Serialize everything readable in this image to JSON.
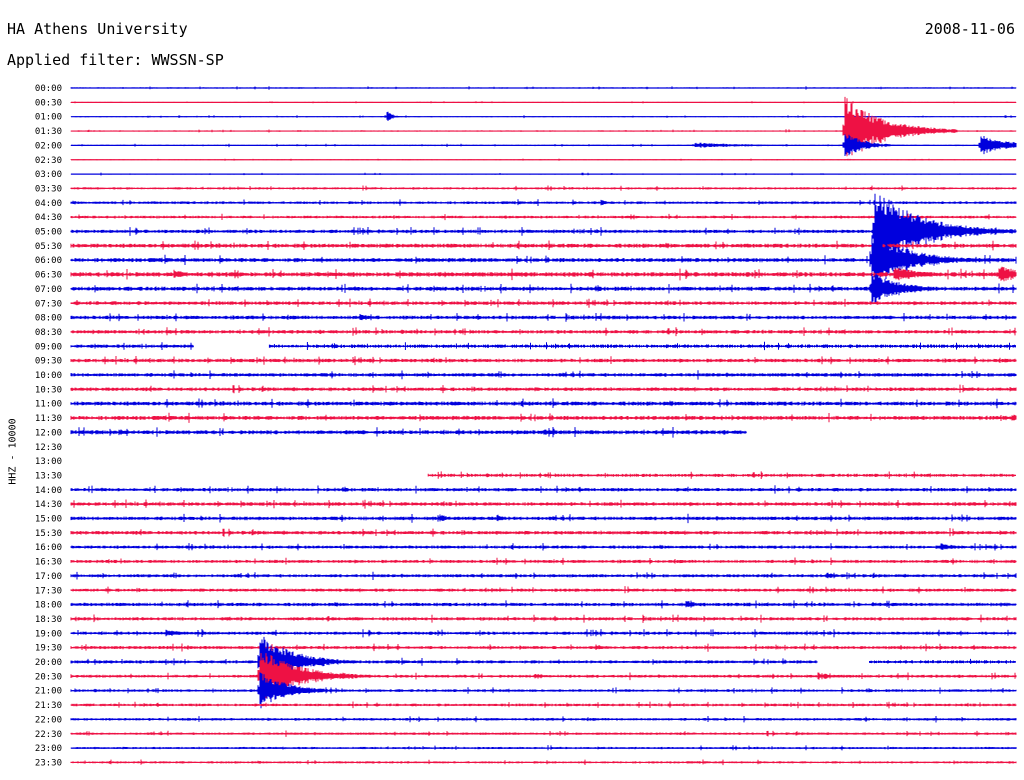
{
  "header": {
    "title": "HA Athens University",
    "date": "2008-11-06",
    "filter_label": "Applied filter:",
    "filter_value": "WWSSN-SP"
  },
  "station": "HHZ - 10000",
  "colors": {
    "odd_rows": "#0000dd",
    "even_rows": "#ee1144"
  },
  "chart_data": {
    "type": "line",
    "title": "HA Athens University",
    "ylabel": "HHZ - 10000",
    "xlabel": "",
    "row_labels": [
      "00:00",
      "00:30",
      "01:00",
      "01:30",
      "02:00",
      "02:30",
      "03:00",
      "03:30",
      "04:00",
      "04:30",
      "05:00",
      "05:30",
      "06:00",
      "06:30",
      "07:00",
      "07:30",
      "08:00",
      "08:30",
      "09:00",
      "09:30",
      "10:00",
      "10:30",
      "11:00",
      "11:30",
      "12:00",
      "12:30",
      "13:00",
      "13:30",
      "14:00",
      "14:30",
      "15:00",
      "15:30",
      "16:00",
      "16:30",
      "17:00",
      "17:30",
      "18:00",
      "18:30",
      "19:00",
      "19:30",
      "20:00",
      "20:30",
      "21:00",
      "21:30",
      "22:00",
      "22:30",
      "23:00",
      "23:30"
    ],
    "row_span_minutes": 30,
    "traces": [
      {
        "row": "00:00",
        "noise": 0.6,
        "coverage": [
          [
            0,
            1
          ]
        ]
      },
      {
        "row": "00:30",
        "noise": 0.4,
        "coverage": [
          [
            0,
            1
          ]
        ]
      },
      {
        "row": "01:00",
        "noise": 0.5,
        "coverage": [
          [
            0,
            1
          ]
        ],
        "events": [
          {
            "t": 0.334,
            "amp": 7,
            "dur": 0.006
          }
        ]
      },
      {
        "row": "01:30",
        "noise": 0.6,
        "coverage": [
          [
            0,
            1
          ]
        ],
        "events": [
          {
            "t": 0.818,
            "amp": 36,
            "dur": 0.04
          }
        ]
      },
      {
        "row": "02:00",
        "noise": 0.6,
        "coverage": [
          [
            0,
            1
          ]
        ],
        "events": [
          {
            "t": 0.66,
            "amp": 3,
            "dur": 0.06
          },
          {
            "t": 0.962,
            "amp": 11,
            "dur": 0.03
          },
          {
            "t": 0.818,
            "amp": 14,
            "dur": 0.02
          }
        ]
      },
      {
        "row": "02:30",
        "noise": 0.4,
        "coverage": [
          [
            0,
            1
          ]
        ]
      },
      {
        "row": "03:00",
        "noise": 0.5,
        "coverage": [
          [
            0,
            1
          ]
        ]
      },
      {
        "row": "03:30",
        "noise": 1.0,
        "coverage": [
          [
            0,
            1
          ]
        ]
      },
      {
        "row": "04:00",
        "noise": 1.2,
        "coverage": [
          [
            0,
            1
          ]
        ],
        "events": [
          {
            "t": 0.56,
            "amp": 4,
            "dur": 0.01
          }
        ]
      },
      {
        "row": "04:30",
        "noise": 1.2,
        "coverage": [
          [
            0,
            1
          ]
        ]
      },
      {
        "row": "05:00",
        "noise": 1.5,
        "coverage": [
          [
            0,
            1
          ]
        ],
        "events": [
          {
            "t": 0.85,
            "amp": 42,
            "dur": 0.05
          }
        ]
      },
      {
        "row": "05:30",
        "noise": 1.8,
        "coverage": [
          [
            0,
            1
          ]
        ]
      },
      {
        "row": "06:00",
        "noise": 1.8,
        "coverage": [
          [
            0,
            1
          ]
        ],
        "events": [
          {
            "t": 0.847,
            "amp": 30,
            "dur": 0.04
          }
        ]
      },
      {
        "row": "06:30",
        "noise": 2.0,
        "coverage": [
          [
            0,
            1
          ]
        ],
        "events": [
          {
            "t": 0.108,
            "amp": 6,
            "dur": 0.015
          },
          {
            "t": 0.87,
            "amp": 8,
            "dur": 0.03
          },
          {
            "t": 0.982,
            "amp": 11,
            "dur": 0.02
          }
        ]
      },
      {
        "row": "07:00",
        "noise": 1.8,
        "coverage": [
          [
            0,
            1
          ]
        ],
        "events": [
          {
            "t": 0.847,
            "amp": 18,
            "dur": 0.03
          }
        ]
      },
      {
        "row": "07:30",
        "noise": 1.6,
        "coverage": [
          [
            0,
            1
          ]
        ]
      },
      {
        "row": "08:00",
        "noise": 1.6,
        "coverage": [
          [
            0,
            1
          ]
        ],
        "events": [
          {
            "t": 0.305,
            "amp": 4,
            "dur": 0.015
          }
        ]
      },
      {
        "row": "08:30",
        "noise": 1.6,
        "coverage": [
          [
            0,
            1
          ]
        ]
      },
      {
        "row": "09:00",
        "noise": 1.5,
        "coverage": [
          [
            0,
            0.13
          ],
          [
            0.21,
            1
          ]
        ]
      },
      {
        "row": "09:30",
        "noise": 1.6,
        "coverage": [
          [
            0,
            1
          ]
        ]
      },
      {
        "row": "10:00",
        "noise": 1.6,
        "coverage": [
          [
            0,
            1
          ]
        ]
      },
      {
        "row": "10:30",
        "noise": 1.6,
        "coverage": [
          [
            0,
            1
          ]
        ]
      },
      {
        "row": "11:00",
        "noise": 1.8,
        "coverage": [
          [
            0,
            1
          ]
        ]
      },
      {
        "row": "11:30",
        "noise": 1.8,
        "coverage": [
          [
            0,
            1
          ]
        ],
        "events": [
          {
            "t": 0.995,
            "amp": 5,
            "dur": 0.01
          }
        ]
      },
      {
        "row": "12:00",
        "noise": 1.8,
        "coverage": [
          [
            0,
            0.715
          ]
        ],
        "events": [
          {
            "t": 0.05,
            "amp": 4,
            "dur": 0.01
          },
          {
            "t": 0.5,
            "amp": 4,
            "dur": 0.015
          }
        ]
      },
      {
        "row": "12:30",
        "noise": 0,
        "coverage": []
      },
      {
        "row": "13:00",
        "noise": 0,
        "coverage": []
      },
      {
        "row": "13:30",
        "noise": 1.4,
        "coverage": [
          [
            0.378,
            1
          ]
        ]
      },
      {
        "row": "14:00",
        "noise": 1.5,
        "coverage": [
          [
            0,
            1
          ]
        ]
      },
      {
        "row": "14:30",
        "noise": 1.6,
        "coverage": [
          [
            0,
            1
          ]
        ]
      },
      {
        "row": "15:00",
        "noise": 1.6,
        "coverage": [
          [
            0,
            1
          ]
        ],
        "events": [
          {
            "t": 0.39,
            "amp": 5,
            "dur": 0.01
          },
          {
            "t": 0.45,
            "amp": 4,
            "dur": 0.01
          }
        ]
      },
      {
        "row": "15:30",
        "noise": 1.6,
        "coverage": [
          [
            0,
            1
          ]
        ]
      },
      {
        "row": "16:00",
        "noise": 1.4,
        "coverage": [
          [
            0,
            1
          ]
        ],
        "events": [
          {
            "t": 0.92,
            "amp": 4,
            "dur": 0.02
          }
        ]
      },
      {
        "row": "16:30",
        "noise": 1.4,
        "coverage": [
          [
            0,
            1
          ]
        ]
      },
      {
        "row": "17:00",
        "noise": 1.4,
        "coverage": [
          [
            0,
            1
          ]
        ],
        "events": [
          {
            "t": 0.8,
            "amp": 4,
            "dur": 0.01
          }
        ]
      },
      {
        "row": "17:30",
        "noise": 1.4,
        "coverage": [
          [
            0,
            1
          ]
        ]
      },
      {
        "row": "18:00",
        "noise": 1.5,
        "coverage": [
          [
            0,
            1
          ]
        ],
        "events": [
          {
            "t": 0.65,
            "amp": 4,
            "dur": 0.02
          }
        ]
      },
      {
        "row": "18:30",
        "noise": 1.5,
        "coverage": [
          [
            0,
            1
          ]
        ]
      },
      {
        "row": "19:00",
        "noise": 1.4,
        "coverage": [
          [
            0,
            1
          ]
        ],
        "events": [
          {
            "t": 0.1,
            "amp": 4,
            "dur": 0.02
          }
        ]
      },
      {
        "row": "19:30",
        "noise": 1.4,
        "coverage": [
          [
            0,
            1
          ]
        ],
        "events": [
          {
            "t": 0.555,
            "amp": 4,
            "dur": 0.01
          }
        ]
      },
      {
        "row": "20:00",
        "noise": 1.4,
        "coverage": [
          [
            0,
            0.79
          ],
          [
            0.845,
            1
          ]
        ],
        "events": [
          {
            "t": 0.199,
            "amp": 30,
            "dur": 0.035
          }
        ]
      },
      {
        "row": "20:30",
        "noise": 1.3,
        "coverage": [
          [
            0,
            1
          ]
        ],
        "events": [
          {
            "t": 0.199,
            "amp": 30,
            "dur": 0.04
          },
          {
            "t": 0.49,
            "amp": 3,
            "dur": 0.02
          },
          {
            "t": 0.79,
            "amp": 4,
            "dur": 0.02
          }
        ]
      },
      {
        "row": "21:00",
        "noise": 1.2,
        "coverage": [
          [
            0,
            1
          ]
        ],
        "events": [
          {
            "t": 0.199,
            "amp": 20,
            "dur": 0.03
          }
        ]
      },
      {
        "row": "21:30",
        "noise": 1.2,
        "coverage": [
          [
            0,
            1
          ]
        ]
      },
      {
        "row": "22:00",
        "noise": 1.2,
        "coverage": [
          [
            0,
            1
          ]
        ]
      },
      {
        "row": "22:30",
        "noise": 1.1,
        "coverage": [
          [
            0,
            1
          ]
        ]
      },
      {
        "row": "23:00",
        "noise": 1.0,
        "coverage": [
          [
            0,
            1
          ]
        ]
      },
      {
        "row": "23:30",
        "noise": 1.0,
        "coverage": [
          [
            0,
            1
          ]
        ]
      }
    ]
  }
}
